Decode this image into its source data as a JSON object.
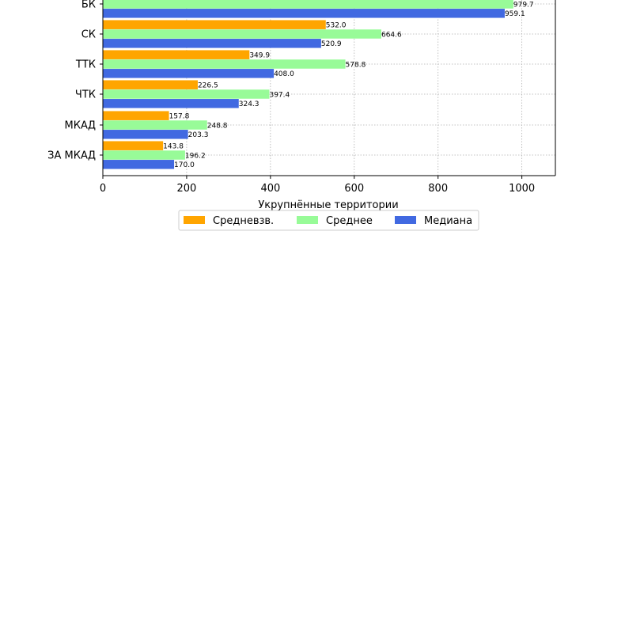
{
  "chart_data": {
    "type": "bar",
    "orientation": "horizontal",
    "categories": [
      "БК",
      "СК",
      "ТТК",
      "ЧТК",
      "МКАД",
      "ЗА МКАД"
    ],
    "series": [
      {
        "name": "Средневзв.",
        "color": "#FFA500",
        "values": [
          null,
          532.0,
          349.9,
          226.5,
          157.8,
          143.8
        ]
      },
      {
        "name": "Среднее",
        "color": "#98FB98",
        "values": [
          979.7,
          664.6,
          578.8,
          397.4,
          248.8,
          196.2
        ]
      },
      {
        "name": "Медиана",
        "color": "#4169E1",
        "values": [
          959.1,
          520.9,
          408.0,
          324.3,
          203.3,
          170.0
        ]
      }
    ],
    "data_labels": {
      "Средневзв.": [
        "",
        "532.0",
        "349.9",
        "226.5",
        "157.8",
        "143.8"
      ],
      "Среднее": [
        "979.7",
        "664.6",
        "578.8",
        "397.4",
        "248.8",
        "196.2"
      ],
      "Медиана": [
        "959.1",
        "520.9",
        "408.0",
        "324.3",
        "203.3",
        "170.0"
      ]
    },
    "xlabel": "Укрупнённые территории",
    "ylabel": "",
    "xlim": [
      0,
      1080
    ],
    "xticks": [
      0,
      200,
      400,
      600,
      800,
      1000
    ],
    "xtick_labels": [
      "0",
      "200",
      "400",
      "600",
      "800",
      "1000"
    ],
    "grid": true,
    "legend": {
      "placement": "below-center",
      "columns": 3
    }
  }
}
